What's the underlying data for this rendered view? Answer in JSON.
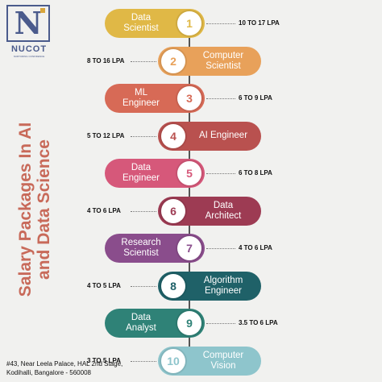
{
  "logo": {
    "letter": "N",
    "name": "NUCOT",
    "tagline": "NURTURING CONFIDENCE"
  },
  "title": {
    "line1": "Salary Packages In AI",
    "line2": "and Data Science"
  },
  "items": [
    {
      "num": "1",
      "label": "Data\nScientist",
      "salary": "10 TO 17 LPA",
      "color": "#e0b846"
    },
    {
      "num": "2",
      "label": "Computer\nScientist",
      "salary": "8 TO 16 LPA",
      "color": "#e8a15a"
    },
    {
      "num": "3",
      "label": "ML\nEngineer",
      "salary": "6 TO 9 LPA",
      "color": "#d76a56"
    },
    {
      "num": "4",
      "label": "AI Engineer",
      "salary": "5 TO 12 LPA",
      "color": "#b9514f"
    },
    {
      "num": "5",
      "label": "Data\nEngineer",
      "salary": "6 TO 8 LPA",
      "color": "#d6587a"
    },
    {
      "num": "6",
      "label": "Data\nArchitect",
      "salary": "4 TO 6 LPA",
      "color": "#9d3b53"
    },
    {
      "num": "7",
      "label": "Research\nScientist",
      "salary": "4 TO 6 LPA",
      "color": "#8a4d8c"
    },
    {
      "num": "8",
      "label": "Algorithm\nEngineer",
      "salary": "4 TO 5 LPA",
      "color": "#1f6168"
    },
    {
      "num": "9",
      "label": "Data\nAnalyst",
      "salary": "3.5 TO 6 LPA",
      "color": "#2f8277"
    },
    {
      "num": "10",
      "label": "Computer\nVision",
      "salary": "3 TO 5 LPA",
      "color": "#8ec5cc"
    }
  ],
  "footer": {
    "line1": "#43, Near Leela Palace, HAL 2nd Stage,",
    "line2": "Kodihalli, Bangalore - 560008"
  }
}
